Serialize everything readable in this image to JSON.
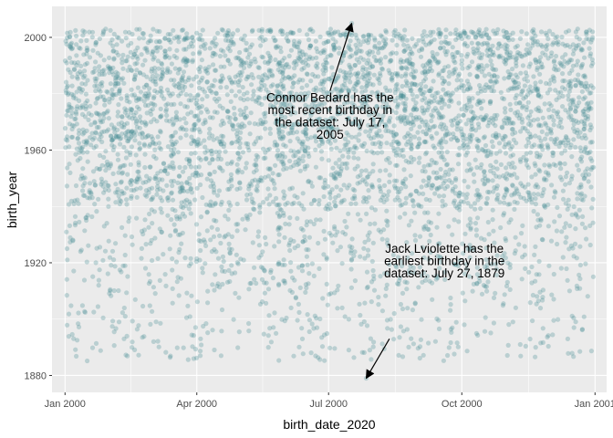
{
  "chart_data": {
    "type": "scatter",
    "title": "",
    "xlabel": "birth_date_2020",
    "ylabel": "birth_year",
    "x_range": [
      "1999-12-23",
      "2001-01-09"
    ],
    "ylim": [
      1874,
      2011
    ],
    "x_ticks": [
      {
        "date": "2000-01-01",
        "label": "Jan 2000"
      },
      {
        "date": "2000-04-01",
        "label": "Apr 2000"
      },
      {
        "date": "2000-07-01",
        "label": "Jul 2000"
      },
      {
        "date": "2000-10-01",
        "label": "Oct 2000"
      },
      {
        "date": "2001-01-01",
        "label": "Jan 2001"
      }
    ],
    "y_ticks": [
      1880,
      1920,
      1960,
      2000
    ],
    "grid": true,
    "point_color": "#4a8f96",
    "point_opacity": 0.3,
    "panel_background": "#ebebeb",
    "annotations": [
      {
        "lines": [
          "Connor Bedard has the",
          "most recent birthday in",
          "the dataset: July 17,",
          "2005"
        ],
        "arrow_to": {
          "x": "2000-07-17",
          "y": 2005
        }
      },
      {
        "lines": [
          "Jack Lviolette has the",
          "earliest birthday in the",
          "dataset: July 27, 1879"
        ],
        "arrow_to": {
          "x": "2000-07-27",
          "y": 1879
        }
      }
    ],
    "highlight_points": [
      {
        "x": "2000-07-17",
        "y": 2005
      },
      {
        "x": "2000-07-27",
        "y": 1879
      }
    ]
  }
}
